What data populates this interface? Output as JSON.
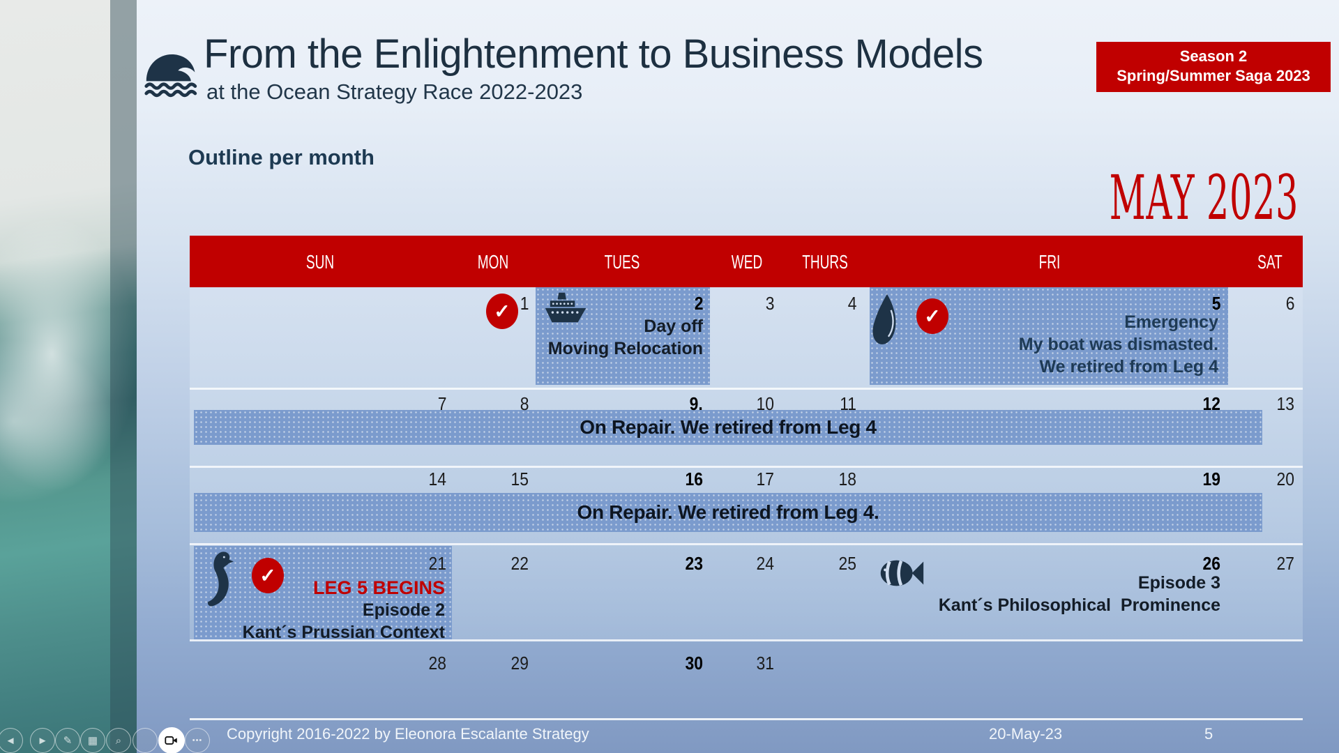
{
  "slide": {
    "title": "From the Enlightenment to Business Models",
    "subtitle": "at the Ocean Strategy Race 2022-2023",
    "badge": {
      "line1": "Season 2",
      "line2": "Spring/Summer Saga 2023"
    },
    "section_heading": "Outline per month",
    "month_title": "MAY 2023"
  },
  "calendar": {
    "day_headers": [
      "SUN",
      "MON",
      "TUES",
      "WED",
      "THURS",
      "FRI",
      "SAT"
    ],
    "days": [
      {
        "label": "1",
        "col": 1,
        "row": 0,
        "bold": false
      },
      {
        "label": "2",
        "col": 2,
        "row": 0,
        "bold": true
      },
      {
        "label": "3",
        "col": 3,
        "row": 0,
        "bold": false
      },
      {
        "label": "4",
        "col": 4,
        "row": 0,
        "bold": false
      },
      {
        "label": "5",
        "col": 5,
        "row": 0,
        "bold": true
      },
      {
        "label": "6",
        "col": 6,
        "row": 0,
        "bold": false
      },
      {
        "label": "7",
        "col": 0,
        "row": 1,
        "bold": false
      },
      {
        "label": "8",
        "col": 1,
        "row": 1,
        "bold": false
      },
      {
        "label": "9.",
        "col": 2,
        "row": 1,
        "bold": true
      },
      {
        "label": "10",
        "col": 3,
        "row": 1,
        "bold": false
      },
      {
        "label": "11",
        "col": 4,
        "row": 1,
        "bold": false
      },
      {
        "label": "12",
        "col": 5,
        "row": 1,
        "bold": true
      },
      {
        "label": "13",
        "col": 6,
        "row": 1,
        "bold": false
      },
      {
        "label": "14",
        "col": 0,
        "row": 2,
        "bold": false
      },
      {
        "label": "15",
        "col": 1,
        "row": 2,
        "bold": false
      },
      {
        "label": "16",
        "col": 2,
        "row": 2,
        "bold": true
      },
      {
        "label": "17",
        "col": 3,
        "row": 2,
        "bold": false
      },
      {
        "label": "18",
        "col": 4,
        "row": 2,
        "bold": false
      },
      {
        "label": "19",
        "col": 5,
        "row": 2,
        "bold": true
      },
      {
        "label": "20",
        "col": 6,
        "row": 2,
        "bold": false
      },
      {
        "label": "21",
        "col": 0,
        "row": 3,
        "bold": false
      },
      {
        "label": "22",
        "col": 1,
        "row": 3,
        "bold": false
      },
      {
        "label": "23",
        "col": 2,
        "row": 3,
        "bold": true
      },
      {
        "label": "24",
        "col": 3,
        "row": 3,
        "bold": false
      },
      {
        "label": "25",
        "col": 4,
        "row": 3,
        "bold": false
      },
      {
        "label": "26",
        "col": 5,
        "row": 3,
        "bold": true
      },
      {
        "label": "27",
        "col": 6,
        "row": 3,
        "bold": false
      },
      {
        "label": "28",
        "col": 0,
        "row": 4,
        "bold": false
      },
      {
        "label": "29",
        "col": 1,
        "row": 4,
        "bold": false
      },
      {
        "label": "30",
        "col": 2,
        "row": 4,
        "bold": true
      },
      {
        "label": "31",
        "col": 3,
        "row": 4,
        "bold": false
      }
    ],
    "events": {
      "may2": {
        "line1": "Day off",
        "line2": "Moving Relocation"
      },
      "may5": {
        "line1": "Emergency",
        "line2": "My boat was dismasted.",
        "line3": "We retired from Leg 4"
      },
      "week2_banner": "On Repair. We retired from Leg 4",
      "week3_banner": "On Repair. We retired from Leg 4.",
      "may21": {
        "line1": "LEG 5 BEGINS",
        "line2": "Episode 2",
        "line3": "Kant´s Prussian Context"
      },
      "may26": {
        "line1": "Episode 3",
        "line2": "Kant´s Philosophical  Prominence"
      }
    }
  },
  "icons": {
    "check": "✓"
  },
  "footer": {
    "copyright": "Copyright 2016-2022 by Eleonora Escalante Strategy",
    "date": "20-May-23",
    "page_number": "5"
  },
  "presenter_controls": [
    {
      "name": "previous-slide-button",
      "glyph": "◄"
    },
    {
      "name": "next-slide-button",
      "glyph": "►"
    },
    {
      "name": "pen-button",
      "glyph": "✎"
    },
    {
      "name": "all-slides-button",
      "glyph": "▦"
    },
    {
      "name": "zoom-slide-button",
      "glyph": "⌕"
    },
    {
      "name": "captions-button",
      "glyph": ""
    },
    {
      "name": "camera-button",
      "glyph": "",
      "style": "solid"
    },
    {
      "name": "more-options-button",
      "glyph": "•••"
    }
  ],
  "colors": {
    "accent_red": "#c00000",
    "navy": "#1e3347",
    "box_blue": "#7b9bcd"
  }
}
